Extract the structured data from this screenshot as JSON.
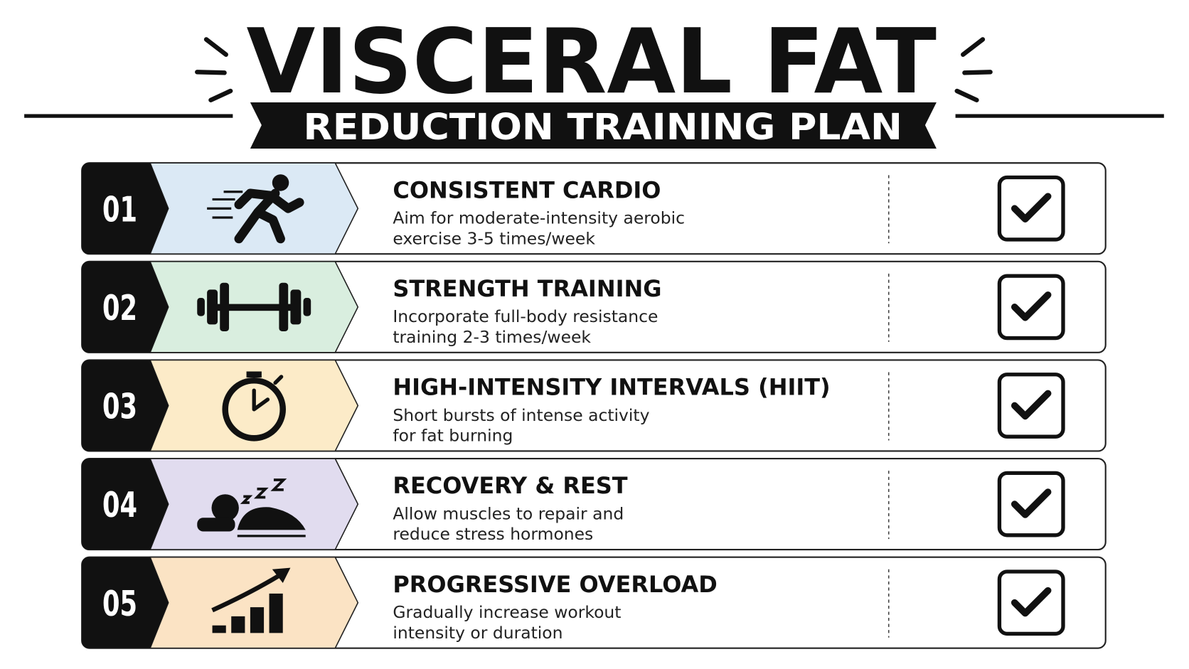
{
  "header": {
    "title": "VISCERAL FAT",
    "subtitle": "REDUCTION TRAINING PLAN"
  },
  "items": [
    {
      "number": "01",
      "title": "CONSISTENT CARDIO",
      "description": [
        "Aim for moderate-intensity aerobic",
        "exercise 3-5 times/week"
      ]
    },
    {
      "number": "02",
      "title": "STRENGTH TRAINING",
      "description": [
        "Incorporate full-body resistance",
        "training 2-3 times/week"
      ]
    },
    {
      "number": "03",
      "title": "HIGH-INTENSITY INTERVALS (HIIT)",
      "description": [
        "Short bursts of intense activity",
        "for fat burning"
      ]
    },
    {
      "number": "04",
      "title": "RECOVERY & REST",
      "description": [
        "Allow muscles to repair and",
        "reduce stress hormones"
      ]
    },
    {
      "number": "05",
      "title": "PROGRESSIVE OVERLOAD",
      "description": [
        "Gradually increase workout",
        "intensity or duration"
      ]
    }
  ]
}
